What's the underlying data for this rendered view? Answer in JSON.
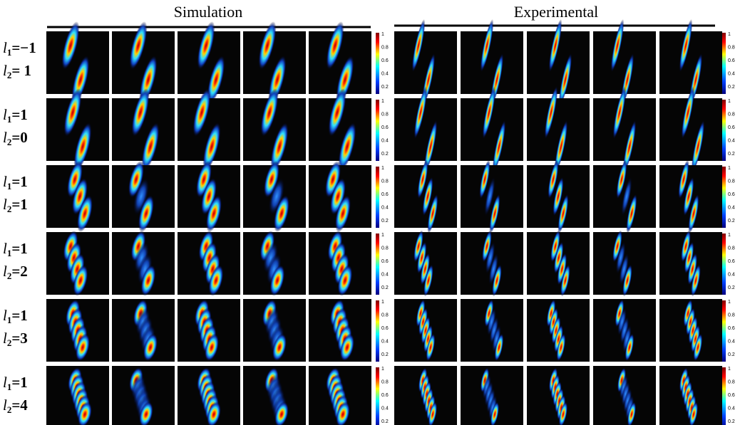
{
  "headers": [
    "Simulation",
    "Experimental"
  ],
  "symbol": "l",
  "subscripts": [
    "1",
    "2"
  ],
  "rows": [
    {
      "l1": "=−1",
      "l2": "= 1"
    },
    {
      "l1": "=1",
      "l2": "=0"
    },
    {
      "l1": "=1",
      "l2": "=1"
    },
    {
      "l1": "=1",
      "l2": "=2"
    },
    {
      "l1": "=1",
      "l2": "=3"
    },
    {
      "l1": "=1",
      "l2": "=4"
    }
  ],
  "colorbar_ticks": [
    "1",
    "0.8",
    "0.6",
    "0.4",
    "0.2"
  ]
}
